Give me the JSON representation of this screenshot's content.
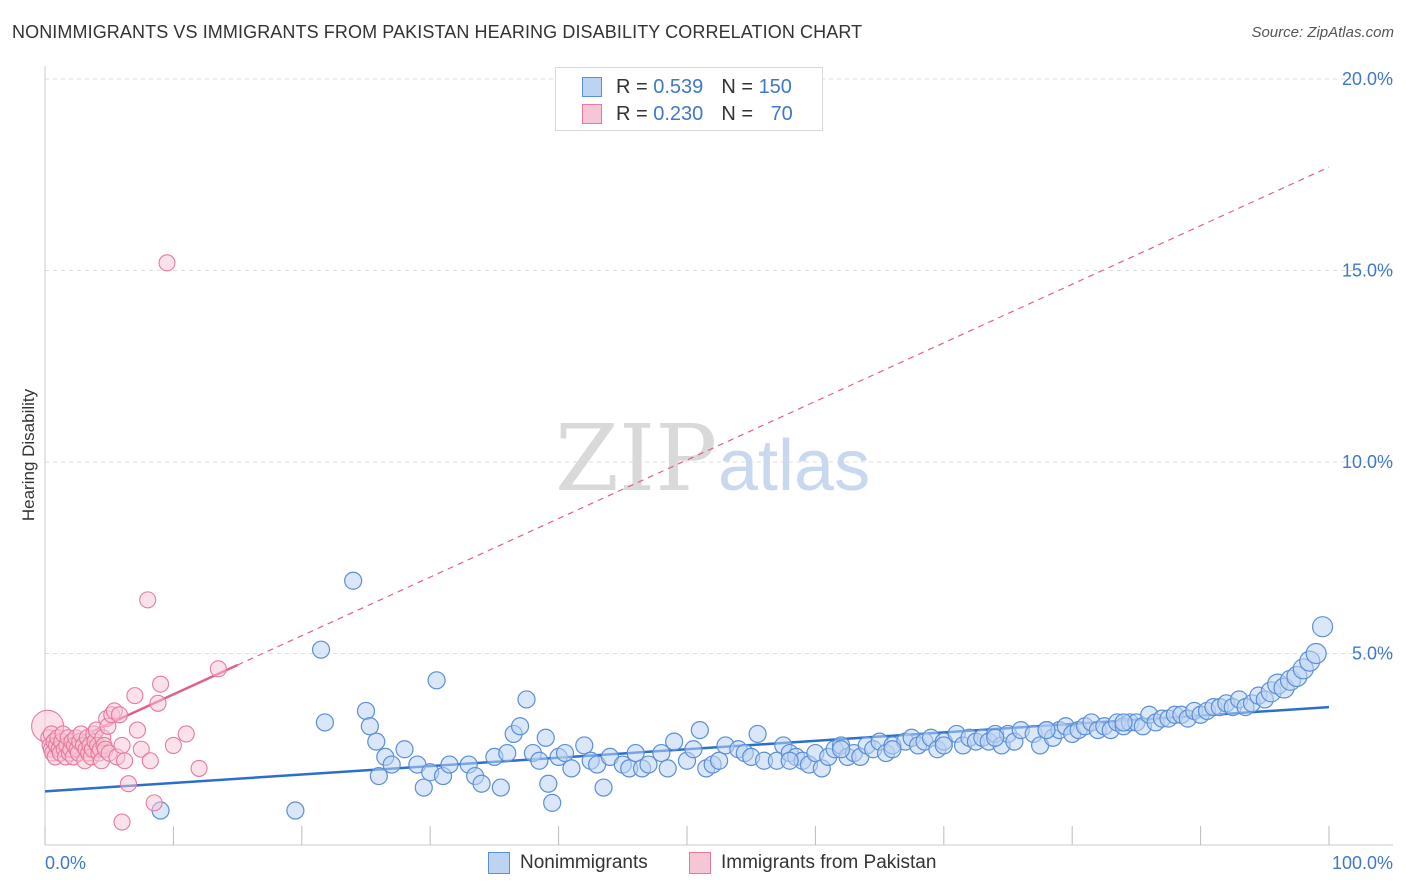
{
  "header": {
    "title": "NONIMMIGRANTS VS IMMIGRANTS FROM PAKISTAN HEARING DISABILITY CORRELATION CHART",
    "source": "Source: ZipAtlas.com"
  },
  "watermark": {
    "zip": "ZIP",
    "atlas": "atlas"
  },
  "legend": {
    "row1": {
      "r_label": "R =",
      "r_value": "0.539",
      "n_label": "N =",
      "n_value": "150"
    },
    "row2": {
      "r_label": "R =",
      "r_value": "0.230",
      "n_label": "N =",
      "n_value": "70"
    }
  },
  "bottom_legend": {
    "series1": "Nonimmigrants",
    "series2": "Immigrants from Pakistan"
  },
  "colors": {
    "blue": "#5b8fd6",
    "blue_fill": "#bcd3f2",
    "blue_line": "#2a6fcc",
    "pink": "#e8799c",
    "pink_fill": "#f7c6d5",
    "pink_line": "#e0608a",
    "tick_text": "#3f78c9",
    "grid": "#dddddd"
  },
  "chart_data": {
    "type": "scatter",
    "title": "NONIMMIGRANTS VS IMMIGRANTS FROM PAKISTAN HEARING DISABILITY CORRELATION CHART",
    "xlabel": "",
    "ylabel": "Hearing Disability",
    "xlim": [
      0,
      100
    ],
    "ylim": [
      0,
      20
    ],
    "x_tick_labels": [
      "0.0%",
      "100.0%"
    ],
    "y_ticks": [
      5,
      10,
      15,
      20
    ],
    "y_tick_labels": [
      "5.0%",
      "10.0%",
      "15.0%",
      "20.0%"
    ],
    "grid": true,
    "legend_position": "top-center",
    "series": [
      {
        "name": "Nonimmigrants",
        "color": "blue",
        "trend": {
          "x0": 0,
          "y0": 1.4,
          "x1": 100,
          "y1": 3.6
        },
        "points": [
          [
            9,
            0.9
          ],
          [
            19.5,
            0.9
          ],
          [
            21.5,
            5.1
          ],
          [
            21.8,
            3.2
          ],
          [
            24,
            6.9
          ],
          [
            25,
            3.5
          ],
          [
            25.3,
            3.1
          ],
          [
            25.8,
            2.7
          ],
          [
            26,
            1.8
          ],
          [
            26.5,
            2.3
          ],
          [
            27,
            2.1
          ],
          [
            28,
            2.5
          ],
          [
            29,
            2.1
          ],
          [
            29.5,
            1.5
          ],
          [
            30,
            1.9
          ],
          [
            30.5,
            4.3
          ],
          [
            31,
            1.8
          ],
          [
            31.5,
            2.1
          ],
          [
            33,
            2.1
          ],
          [
            33.5,
            1.8
          ],
          [
            34,
            1.6
          ],
          [
            35,
            2.3
          ],
          [
            35.5,
            1.5
          ],
          [
            36,
            2.4
          ],
          [
            36.5,
            2.9
          ],
          [
            37,
            3.1
          ],
          [
            37.5,
            3.8
          ],
          [
            38,
            2.4
          ],
          [
            38.5,
            2.2
          ],
          [
            39,
            2.8
          ],
          [
            39.2,
            1.6
          ],
          [
            39.5,
            1.1
          ],
          [
            40,
            2.3
          ],
          [
            40.5,
            2.4
          ],
          [
            41,
            2.0
          ],
          [
            42,
            2.6
          ],
          [
            42.5,
            2.2
          ],
          [
            43,
            2.1
          ],
          [
            43.5,
            1.5
          ],
          [
            44,
            2.3
          ],
          [
            45,
            2.1
          ],
          [
            45.5,
            2.0
          ],
          [
            46,
            2.4
          ],
          [
            46.5,
            2.0
          ],
          [
            47,
            2.1
          ],
          [
            48,
            2.4
          ],
          [
            48.5,
            2.0
          ],
          [
            49,
            2.7
          ],
          [
            50,
            2.2
          ],
          [
            50.5,
            2.5
          ],
          [
            51,
            3.0
          ],
          [
            51.5,
            2.0
          ],
          [
            52,
            2.1
          ],
          [
            52.5,
            2.2
          ],
          [
            53,
            2.6
          ],
          [
            54,
            2.5
          ],
          [
            54.5,
            2.4
          ],
          [
            55,
            2.3
          ],
          [
            55.5,
            2.9
          ],
          [
            56,
            2.2
          ],
          [
            57,
            2.2
          ],
          [
            57.5,
            2.6
          ],
          [
            58,
            2.4
          ],
          [
            58.5,
            2.3
          ],
          [
            59,
            2.2
          ],
          [
            59.5,
            2.1
          ],
          [
            60,
            2.4
          ],
          [
            60.5,
            2.0
          ],
          [
            61,
            2.3
          ],
          [
            61.5,
            2.5
          ],
          [
            62,
            2.6
          ],
          [
            62.5,
            2.3
          ],
          [
            63,
            2.4
          ],
          [
            63.5,
            2.3
          ],
          [
            64,
            2.6
          ],
          [
            64.5,
            2.5
          ],
          [
            65,
            2.7
          ],
          [
            65.5,
            2.4
          ],
          [
            66,
            2.6
          ],
          [
            67,
            2.7
          ],
          [
            67.5,
            2.8
          ],
          [
            68,
            2.6
          ],
          [
            68.5,
            2.7
          ],
          [
            69,
            2.8
          ],
          [
            69.5,
            2.5
          ],
          [
            70,
            2.7
          ],
          [
            71,
            2.9
          ],
          [
            71.5,
            2.6
          ],
          [
            72,
            2.8
          ],
          [
            72.5,
            2.7
          ],
          [
            73,
            2.8
          ],
          [
            73.5,
            2.7
          ],
          [
            74,
            2.9
          ],
          [
            74.5,
            2.6
          ],
          [
            75,
            2.9
          ],
          [
            75.5,
            2.7
          ],
          [
            76,
            3.0
          ],
          [
            77,
            2.9
          ],
          [
            77.5,
            2.6
          ],
          [
            78,
            3.0
          ],
          [
            78.5,
            2.8
          ],
          [
            79,
            3.0
          ],
          [
            79.5,
            3.1
          ],
          [
            80,
            2.9
          ],
          [
            80.5,
            3.0
          ],
          [
            81,
            3.1
          ],
          [
            81.5,
            3.2
          ],
          [
            82,
            3.0
          ],
          [
            82.5,
            3.1
          ],
          [
            83,
            3.0
          ],
          [
            83.5,
            3.2
          ],
          [
            84,
            3.1
          ],
          [
            84.5,
            3.2
          ],
          [
            85,
            3.2
          ],
          [
            85.5,
            3.1
          ],
          [
            86,
            3.4
          ],
          [
            86.5,
            3.2
          ],
          [
            87,
            3.3
          ],
          [
            87.5,
            3.3
          ],
          [
            88,
            3.4
          ],
          [
            88.5,
            3.4
          ],
          [
            89,
            3.3
          ],
          [
            89.5,
            3.5
          ],
          [
            90,
            3.4
          ],
          [
            90.5,
            3.5
          ],
          [
            91,
            3.6
          ],
          [
            91.5,
            3.6
          ],
          [
            92,
            3.7
          ],
          [
            92.5,
            3.6
          ],
          [
            93,
            3.8
          ],
          [
            93.5,
            3.6
          ],
          [
            94,
            3.7
          ],
          [
            94.5,
            3.9
          ],
          [
            95,
            3.8
          ],
          [
            95.5,
            4.0
          ],
          [
            96,
            4.2
          ],
          [
            96.5,
            4.1
          ],
          [
            97,
            4.3
          ],
          [
            97.5,
            4.4
          ],
          [
            98,
            4.6
          ],
          [
            98.5,
            4.8
          ],
          [
            99,
            5.0
          ],
          [
            99.5,
            5.7
          ],
          [
            58,
            2.2
          ],
          [
            62,
            2.5
          ],
          [
            66,
            2.5
          ],
          [
            70,
            2.6
          ],
          [
            74,
            2.8
          ],
          [
            78,
            3.0
          ],
          [
            84,
            3.2
          ]
        ]
      },
      {
        "name": "Immigrants from Pakistan",
        "color": "pink",
        "trend": {
          "x0": 0,
          "y0": 2.4,
          "x1": 15,
          "y1": 4.7
        },
        "trend_extended": {
          "x0": 15,
          "y0": 4.7,
          "x1": 100,
          "y1": 17.7
        },
        "points": [
          [
            0.2,
            3.1
          ],
          [
            0.3,
            2.8
          ],
          [
            0.4,
            2.6
          ],
          [
            0.5,
            2.5
          ],
          [
            0.5,
            2.9
          ],
          [
            0.6,
            2.4
          ],
          [
            0.7,
            2.7
          ],
          [
            0.8,
            2.3
          ],
          [
            0.9,
            2.6
          ],
          [
            1.0,
            2.8
          ],
          [
            1.1,
            2.5
          ],
          [
            1.2,
            2.4
          ],
          [
            1.3,
            2.7
          ],
          [
            1.4,
            2.9
          ],
          [
            1.5,
            2.5
          ],
          [
            1.6,
            2.3
          ],
          [
            1.7,
            2.6
          ],
          [
            1.8,
            2.8
          ],
          [
            1.9,
            2.4
          ],
          [
            2.0,
            2.5
          ],
          [
            2.1,
            2.7
          ],
          [
            2.2,
            2.3
          ],
          [
            2.3,
            2.6
          ],
          [
            2.4,
            2.8
          ],
          [
            2.5,
            2.5
          ],
          [
            2.6,
            2.4
          ],
          [
            2.7,
            2.7
          ],
          [
            2.8,
            2.9
          ],
          [
            3.0,
            2.6
          ],
          [
            3.1,
            2.2
          ],
          [
            3.2,
            2.5
          ],
          [
            3.3,
            2.8
          ],
          [
            3.4,
            2.4
          ],
          [
            3.5,
            2.6
          ],
          [
            3.6,
            2.3
          ],
          [
            3.7,
            2.5
          ],
          [
            3.8,
            2.9
          ],
          [
            3.9,
            2.7
          ],
          [
            4.0,
            3.0
          ],
          [
            4.1,
            2.6
          ],
          [
            4.2,
            2.4
          ],
          [
            4.3,
            2.5
          ],
          [
            4.4,
            2.2
          ],
          [
            4.5,
            2.8
          ],
          [
            4.6,
            2.6
          ],
          [
            4.7,
            2.5
          ],
          [
            4.8,
            3.3
          ],
          [
            4.9,
            3.1
          ],
          [
            5.0,
            2.4
          ],
          [
            5.2,
            3.4
          ],
          [
            5.4,
            3.5
          ],
          [
            5.6,
            2.3
          ],
          [
            5.8,
            3.4
          ],
          [
            6.0,
            2.6
          ],
          [
            6.2,
            2.2
          ],
          [
            6.5,
            1.6
          ],
          [
            7.0,
            3.9
          ],
          [
            7.2,
            3.0
          ],
          [
            7.5,
            2.5
          ],
          [
            8.0,
            6.4
          ],
          [
            8.2,
            2.2
          ],
          [
            8.5,
            1.1
          ],
          [
            8.8,
            3.7
          ],
          [
            9.0,
            4.2
          ],
          [
            9.5,
            15.2
          ],
          [
            10,
            2.6
          ],
          [
            11,
            2.9
          ],
          [
            12,
            2.0
          ],
          [
            13.5,
            4.6
          ],
          [
            6.0,
            0.6
          ]
        ]
      }
    ]
  }
}
